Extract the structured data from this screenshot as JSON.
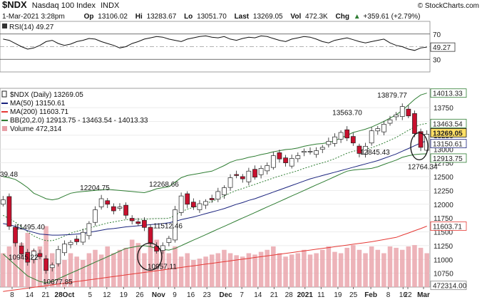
{
  "header": {
    "symbol": "$NDX",
    "name": "Nasdaq 100 Index",
    "exchange": "INDX",
    "date": "1-Mar-2021 3:28pm",
    "open_label": "Op",
    "open": "13106.02",
    "high_label": "Hi",
    "high": "13283.67",
    "low_label": "Lo",
    "low": "13051.70",
    "last_label": "Last",
    "last": "13269.05",
    "vol_label": "Vol",
    "vol": "472.3K",
    "chg_label": "Chg",
    "chg": "+359.61 (+2.79%)",
    "chg_arrow": "▲",
    "watermark": "© StockCharts.com"
  },
  "colors": {
    "up": "#ffffff",
    "down": "#c8102e",
    "ma50": "#1a237e",
    "ma200": "#e53935",
    "bb": "#2e7d32",
    "volume": "#e8a0a8",
    "rsi": "#111111"
  },
  "chart_data": [
    {
      "type": "line",
      "title": "RSI(14) 49.27",
      "legend": "RSI(14) 49.27",
      "ylim": [
        10,
        90
      ],
      "yticks": [
        "70",
        "50",
        "30"
      ],
      "reference_lines": [
        70,
        30
      ],
      "last_label": "49.27",
      "values": [
        62,
        60,
        55,
        50,
        46,
        48,
        52,
        58,
        60,
        55,
        52,
        54,
        58,
        60,
        63,
        62,
        58,
        55,
        52,
        48,
        50,
        55,
        58,
        62,
        64,
        66,
        65,
        62,
        60,
        58,
        62,
        64,
        66,
        67,
        65,
        64,
        66,
        62,
        60,
        63,
        65,
        64,
        67,
        66,
        63,
        60,
        58,
        62,
        64,
        66,
        65,
        62,
        58,
        56,
        60,
        62,
        64,
        61,
        58,
        56,
        58,
        60,
        62,
        56,
        52,
        50,
        46,
        44,
        48,
        49.27
      ]
    },
    {
      "type": "candlestick",
      "title": "$NDX (Daily) 13269.05",
      "legend": [
        {
          "name": "$NDX (Daily)",
          "value": "13269.05"
        },
        {
          "name": "MA(50)",
          "value": "13150.61"
        },
        {
          "name": "MA(200)",
          "value": "11603.71"
        },
        {
          "name": "BB(20,2.0)",
          "value": "12913.75 - 13463.54 - 14013.33"
        },
        {
          "name": "Volume",
          "value": "472,314"
        }
      ],
      "ylim": [
        10500,
        14100
      ],
      "yticks": [
        "13750",
        "13500",
        "13250",
        "13000",
        "12750",
        "12500",
        "12250",
        "12000",
        "11750",
        "11500",
        "11250",
        "11000",
        "10750"
      ],
      "right_labels": [
        "14013.33",
        "13463.54",
        "13269.05",
        "13150.61",
        "12913.75",
        "11603.71",
        "472314.00"
      ],
      "x_tick_labels": [
        "8",
        "14",
        "21",
        "28Oct",
        "5",
        "12",
        "19",
        "26",
        "Nov",
        "9",
        "16",
        "23",
        "Dec",
        "7",
        "14",
        "21",
        "28",
        "2021",
        "11",
        "19",
        "25",
        "Feb",
        "8",
        "16",
        "22",
        "Mar"
      ],
      "annotations": [
        "12204.75",
        "11495.40",
        "10945.22",
        "10677.85",
        "12268.66",
        "11512.46",
        "10957.11",
        "13563.70",
        "12845.43",
        "13879.77",
        "12764.34",
        "39.48"
      ],
      "closes": [
        12080,
        11600,
        11300,
        11100,
        10950,
        11150,
        11050,
        10800,
        10900,
        11180,
        11280,
        11310,
        11320,
        11490,
        11650,
        11900,
        12100,
        12000,
        11880,
        11950,
        11800,
        11700,
        11650,
        11580,
        11300,
        11150,
        11250,
        11380,
        11900,
        12150,
        12000,
        11950,
        12010,
        12050,
        12080,
        12230,
        12300,
        12480,
        12520,
        12460,
        12600,
        12490,
        12650,
        12700,
        12880,
        12820,
        12750,
        12830,
        12880,
        12960,
        12960,
        12970,
        13030,
        13140,
        13220,
        13300,
        13200,
        13110,
        12920,
        13050,
        13330,
        13370,
        13450,
        13530,
        13620,
        13770,
        13600,
        13280,
        13030,
        13269.05
      ],
      "ma50": [
        11650,
        11630,
        11600,
        11560,
        11520,
        11490,
        11460,
        11450,
        11440,
        11440,
        11445,
        11450,
        11460,
        11470,
        11490,
        11510,
        11530,
        11550,
        11560,
        11575,
        11590,
        11600,
        11610,
        11620,
        11630,
        11640,
        11650,
        11665,
        11690,
        11720,
        11745,
        11770,
        11800,
        11830,
        11860,
        11890,
        11920,
        11960,
        12000,
        12030,
        12070,
        12100,
        12140,
        12180,
        12220,
        12260,
        12300,
        12340,
        12380,
        12420,
        12460,
        12490,
        12520,
        12550,
        12580,
        12610,
        12640,
        12670,
        12700,
        12730,
        12760,
        12790,
        12830,
        12870,
        12910,
        12960,
        13010,
        13060,
        13110,
        13150.61
      ],
      "ma200": [
        10420,
        10435,
        10450,
        10465,
        10480,
        10495,
        10510,
        10525,
        10540,
        10555,
        10570,
        10585,
        10600,
        10615,
        10630,
        10645,
        10660,
        10675,
        10690,
        10705,
        10720,
        10735,
        10750,
        10765,
        10780,
        10795,
        10810,
        10825,
        10840,
        10855,
        10870,
        10885,
        10900,
        10915,
        10930,
        10945,
        10960,
        10975,
        10990,
        11005,
        11020,
        11035,
        11050,
        11065,
        11080,
        11095,
        11110,
        11125,
        11140,
        11155,
        11170,
        11185,
        11200,
        11215,
        11230,
        11245,
        11260,
        11275,
        11290,
        11305,
        11320,
        11340,
        11360,
        11380,
        11400,
        11440,
        11480,
        11520,
        11560,
        11603.71
      ],
      "bb_upper": [
        12500,
        12480,
        12450,
        12380,
        12300,
        12200,
        12150,
        12100,
        12080,
        12100,
        12150,
        12200,
        12220,
        12230,
        12240,
        12250,
        12260,
        12270,
        12260,
        12250,
        12240,
        12230,
        12220,
        12210,
        12240,
        12280,
        12300,
        12320,
        12400,
        12480,
        12520,
        12540,
        12560,
        12580,
        12600,
        12650,
        12700,
        12760,
        12800,
        12820,
        12850,
        12870,
        12900,
        12920,
        12950,
        12970,
        12990,
        13000,
        13020,
        13050,
        13070,
        13090,
        13100,
        13120,
        13150,
        13200,
        13250,
        13300,
        13330,
        13360,
        13400,
        13450,
        13500,
        13560,
        13620,
        13700,
        13800,
        13900,
        13980,
        14013.33
      ],
      "bb_lower": [
        11100,
        11000,
        10900,
        10800,
        10700,
        10650,
        10600,
        10580,
        10600,
        10650,
        10700,
        10750,
        10800,
        10850,
        10900,
        10950,
        11000,
        11050,
        11100,
        11150,
        11200,
        11220,
        11240,
        11250,
        11230,
        11200,
        11180,
        11170,
        11200,
        11250,
        11300,
        11350,
        11400,
        11450,
        11500,
        11550,
        11600,
        11650,
        11700,
        11750,
        11800,
        11850,
        11900,
        11950,
        12000,
        12050,
        12100,
        12150,
        12200,
        12250,
        12300,
        12350,
        12400,
        12450,
        12500,
        12550,
        12600,
        12620,
        12630,
        12640,
        12650,
        12680,
        12720,
        12760,
        12800,
        12850,
        12880,
        12900,
        12910,
        12913.75
      ],
      "volume": [
        0.5,
        0.6,
        0.7,
        0.65,
        0.8,
        0.55,
        0.6,
        0.9,
        0.5,
        0.45,
        0.4,
        0.5,
        0.45,
        0.4,
        0.5,
        0.55,
        0.48,
        0.6,
        0.5,
        0.55,
        0.58,
        0.7,
        0.65,
        0.5,
        0.75,
        0.7,
        0.55,
        0.5,
        0.6,
        0.45,
        0.5,
        0.4,
        0.42,
        0.45,
        0.48,
        0.5,
        0.55,
        0.5,
        0.47,
        0.45,
        0.5,
        0.48,
        0.52,
        0.55,
        0.6,
        0.5,
        0.45,
        0.48,
        0.5,
        0.55,
        0.48,
        0.5,
        0.55,
        0.6,
        0.52,
        0.5,
        0.58,
        0.62,
        0.55,
        0.5,
        0.6,
        0.55,
        0.5,
        0.6,
        0.58,
        0.55,
        0.6,
        0.62,
        0.58,
        0.5
      ]
    }
  ]
}
